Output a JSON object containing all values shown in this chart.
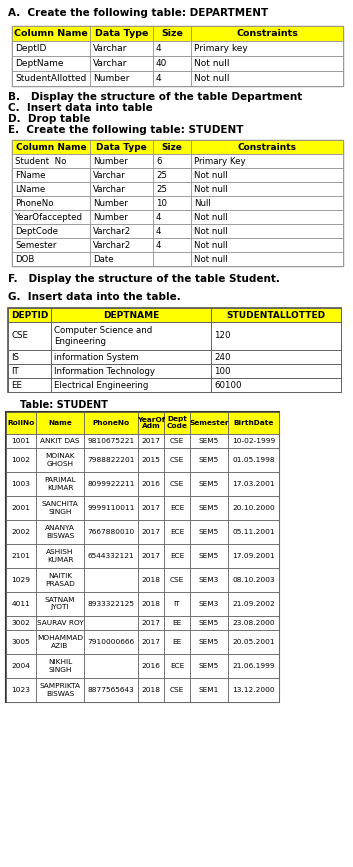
{
  "title_a": "A.  Create the following table: DEPARTMENT",
  "dept_table_headers": [
    "Column Name",
    "Data Type",
    "Size",
    "Constraints"
  ],
  "dept_table_rows": [
    [
      "DeptID",
      "Varchar",
      "4",
      "Primary key"
    ],
    [
      "DeptName",
      "Varchar",
      "40",
      "Not null"
    ],
    [
      "StudentAllotted",
      "Number",
      "4",
      "Not null"
    ]
  ],
  "text_b": "B.   Display the structure of the table Department",
  "text_c": "C.  Insert data into table",
  "text_d": "D.  Drop table",
  "text_e": "E.  Create the following table: STUDENT",
  "student_schema_headers": [
    "Column Name",
    "Data Type",
    "Size",
    "Constraints"
  ],
  "student_schema_rows": [
    [
      "Student  No",
      "Number",
      "6",
      "Primary Key"
    ],
    [
      "FName",
      "Varchar",
      "25",
      "Not null"
    ],
    [
      "LName",
      "Varchar",
      "25",
      "Not null"
    ],
    [
      "PhoneNo",
      "Number",
      "10",
      "Null"
    ],
    [
      "YearOfaccepted",
      "Number",
      "4",
      "Not null"
    ],
    [
      "DeptCode",
      "Varchar2",
      "4",
      "Not null"
    ],
    [
      "Semester",
      "Varchar2",
      "4",
      "Not null"
    ],
    [
      "DOB",
      "Date",
      "",
      "Not null"
    ]
  ],
  "text_f": "F.   Display the structure of the table Student.",
  "text_g": "G.  Insert data into the table.",
  "dept_data_headers": [
    "DEPTID",
    "DEPTNAME",
    "STUDENTALLOTTED"
  ],
  "dept_data_rows": [
    [
      "CSE",
      "Computer Science and\nEngineering",
      "120"
    ],
    [
      "IS",
      "information System",
      "240"
    ],
    [
      "IT",
      "Information Technology",
      "100"
    ],
    [
      "EE",
      "Electrical Engineering",
      "60100"
    ]
  ],
  "student_table_label": "Table: STUDENT",
  "student_data_headers": [
    "RollNo",
    "Name",
    "PhoneNo",
    "YearOf\nAdm",
    "Dept\nCode",
    "Semester",
    "BirthDate"
  ],
  "student_data_rows": [
    [
      "1001",
      "ANKIT DAS",
      "9810675221",
      "2017",
      "CSE",
      "SEM5",
      "10-02-1999"
    ],
    [
      "1002",
      "MOINAK\nGHOSH",
      "7988822201",
      "2015",
      "CSE",
      "SEM5",
      "01.05.1998"
    ],
    [
      "1003",
      "PARIMAL\nKUMAR",
      "8099922211",
      "2016",
      "CSE",
      "SEM5",
      "17.03.2001"
    ],
    [
      "2001",
      "SANCHITA\nSINGH",
      "9999110011",
      "2017",
      "ECE",
      "SEM5",
      "20.10.2000"
    ],
    [
      "2002",
      "ANANYA\nBISWAS",
      "7667880010",
      "2017",
      "ECE",
      "SEM5",
      "05.11.2001"
    ],
    [
      "2101",
      "ASHISH\nKUMAR",
      "6544332121",
      "2017",
      "ECE",
      "SEM5",
      "17.09.2001"
    ],
    [
      "1029",
      "NAITIK\nPRASAD",
      "",
      "2018",
      "CSE",
      "SEM3",
      "08.10.2003"
    ],
    [
      "4011",
      "SATNAM\nJYOTI",
      "8933322125",
      "2018",
      "IT",
      "SEM3",
      "21.09.2002"
    ],
    [
      "3002",
      "SAURAV ROY",
      "",
      "2017",
      "EE",
      "SEM5",
      "23.08.2000"
    ],
    [
      "3005",
      "MOHAMMAD\nAZIB",
      "7910000666",
      "2017",
      "EE",
      "SEM5",
      "20.05.2001"
    ],
    [
      "2004",
      "NIKHIL\nSINGH",
      "",
      "2016",
      "ECE",
      "SEM5",
      "21.06.1999"
    ],
    [
      "1023",
      "SAMPRIKTA\nBISWAS",
      "8877565643",
      "2018",
      "CSE",
      "SEM1",
      "13.12.2000"
    ]
  ],
  "header_bg": "#FFFF00",
  "body_bg": "#FFFFFF"
}
